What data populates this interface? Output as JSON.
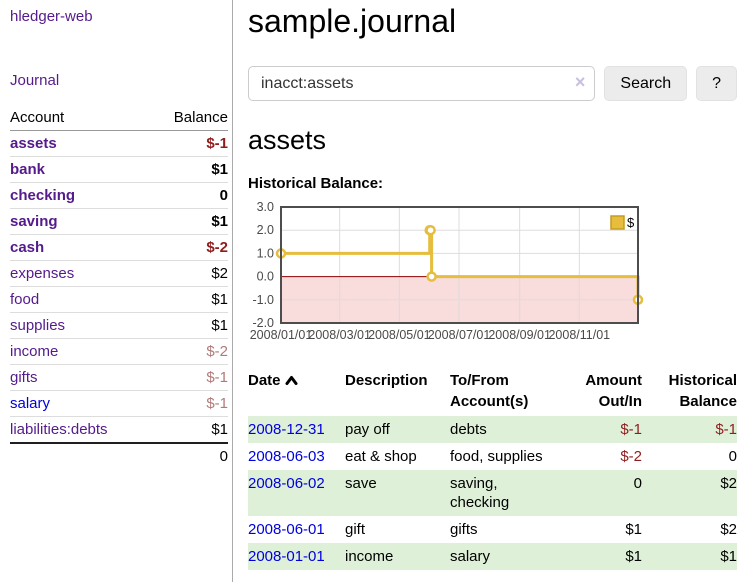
{
  "sidebar": {
    "app_title": "hledger-web",
    "nav_journal": "Journal",
    "accounts_table": {
      "headers": [
        "Account",
        "Balance"
      ],
      "rows": [
        {
          "account": "assets",
          "balance": "$-1",
          "indent": 1,
          "bold": true,
          "negative": "strong",
          "link_color": "purple"
        },
        {
          "account": "bank",
          "balance": "$1",
          "indent": 2,
          "bold": true,
          "negative": null,
          "link_color": "purple"
        },
        {
          "account": "checking",
          "balance": "0",
          "indent": 3,
          "bold": true,
          "negative": null,
          "link_color": "purple"
        },
        {
          "account": "saving",
          "balance": "$1",
          "indent": 3,
          "bold": true,
          "negative": null,
          "link_color": "purple"
        },
        {
          "account": "cash",
          "balance": "$-2",
          "indent": 2,
          "bold": true,
          "negative": "strong",
          "link_color": "purple"
        },
        {
          "account": "expenses",
          "balance": "$2",
          "indent": 1,
          "bold": false,
          "negative": null,
          "link_color": "purple"
        },
        {
          "account": "food",
          "balance": "$1",
          "indent": 2,
          "bold": false,
          "negative": null,
          "link_color": "purple"
        },
        {
          "account": "supplies",
          "balance": "$1",
          "indent": 2,
          "bold": false,
          "negative": null,
          "link_color": "purple"
        },
        {
          "account": "income",
          "balance": "$-2",
          "indent": 1,
          "bold": false,
          "negative": "muted",
          "link_color": "purple"
        },
        {
          "account": "gifts",
          "balance": "$-1",
          "indent": 2,
          "bold": false,
          "negative": "muted",
          "link_color": "purple"
        },
        {
          "account": "salary",
          "balance": "$-1",
          "indent": 2,
          "bold": false,
          "negative": "muted",
          "link_color": "blue"
        },
        {
          "account": "liabilities:debts",
          "balance": "$1",
          "indent": 1,
          "bold": false,
          "negative": null,
          "link_color": "purple"
        }
      ],
      "total": "0"
    }
  },
  "main": {
    "title": "sample.journal",
    "search": {
      "value": "inacct:assets",
      "clear_icon": "×",
      "search_label": "Search",
      "help_label": "?"
    },
    "account_heading": "assets",
    "chart_label": "Historical Balance:",
    "register_table": {
      "headers": [
        "Date",
        "Description",
        "To/From Account(s)",
        "Amount Out/In",
        "Historical Balance"
      ],
      "rows": [
        {
          "date": "2008-12-31",
          "description": "pay off",
          "accounts": "debts",
          "amount": "$-1",
          "amount_negative": true,
          "balance": "$-1",
          "balance_negative": true
        },
        {
          "date": "2008-06-03",
          "description": "eat & shop",
          "accounts": "food, supplies",
          "amount": "$-2",
          "amount_negative": true,
          "balance": "0",
          "balance_negative": false
        },
        {
          "date": "2008-06-02",
          "description": "save",
          "accounts": "saving, checking",
          "amount": "0",
          "amount_negative": false,
          "balance": "$2",
          "balance_negative": false
        },
        {
          "date": "2008-06-01",
          "description": "gift",
          "accounts": "gifts",
          "amount": "$1",
          "amount_negative": false,
          "balance": "$2",
          "balance_negative": false
        },
        {
          "date": "2008-01-01",
          "description": "income",
          "accounts": "salary",
          "amount": "$1",
          "amount_negative": false,
          "balance": "$1",
          "balance_negative": false
        }
      ]
    }
  },
  "chart_data": {
    "type": "line",
    "title": "Historical Balance",
    "series": [
      {
        "name": "$",
        "color": "#e6bd3c",
        "step": true,
        "points": [
          [
            "2008-01-01",
            1
          ],
          [
            "2008-06-01",
            2
          ],
          [
            "2008-06-02",
            2
          ],
          [
            "2008-06-03",
            0
          ],
          [
            "2008-12-31",
            -1
          ]
        ]
      }
    ],
    "ylim": [
      -2,
      3
    ],
    "yticks": [
      "3.0",
      "2.0",
      "1.0",
      "0.0",
      "-1.0",
      "-2.0"
    ],
    "xticks": [
      "2008/01/01",
      "2008/03/01",
      "2008/05/01",
      "2008/07/01",
      "2008/09/01",
      "2008/11/01"
    ],
    "xrange": [
      "2008-01-01",
      "2008-12-31"
    ],
    "grid_on": true,
    "legend_position": "top-right",
    "negative_region_fill": "#f9dcdc",
    "zero_line_color": "#8b0000",
    "grid_color": "#dddddd",
    "border_color": "#4d4d4d",
    "axis_label_color": "#4a4a4a",
    "legend_box_border": "#c69b1e"
  }
}
